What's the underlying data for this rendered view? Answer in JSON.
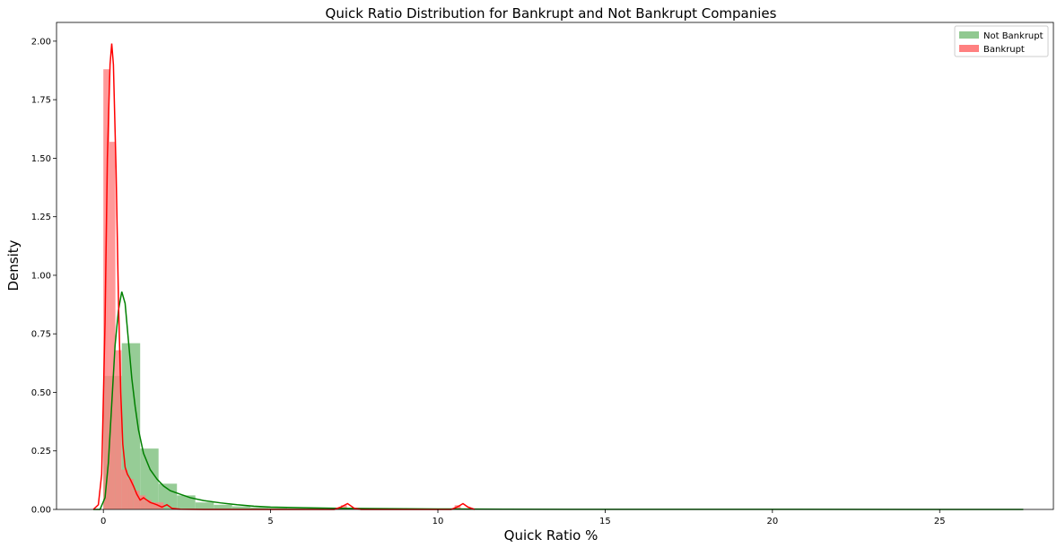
{
  "chart_data": {
    "type": "histogram",
    "title": "Quick Ratio Distribution for Bankrupt and Not Bankrupt Companies",
    "xlabel": "Quick Ratio %",
    "ylabel": "Density",
    "xlim": [
      -1.4,
      28.4
    ],
    "ylim": [
      0,
      2.08
    ],
    "xticks": [
      0,
      5,
      10,
      15,
      20,
      25
    ],
    "yticks": [
      0.0,
      0.25,
      0.5,
      0.75,
      1.0,
      1.25,
      1.5,
      1.75,
      2.0
    ],
    "xtick_labels": [
      "0",
      "5",
      "10",
      "15",
      "20",
      "25"
    ],
    "ytick_labels": [
      "0.00",
      "0.25",
      "0.50",
      "0.75",
      "1.00",
      "1.25",
      "1.50",
      "1.75",
      "2.00"
    ],
    "grid": false,
    "legend_position": "top-right",
    "series": [
      {
        "name": "Not Bankrupt",
        "color": "#008000",
        "bar_color": "#90c990",
        "bins": [
          [
            0.0,
            0.55,
            0.57
          ],
          [
            0.55,
            1.1,
            0.71
          ],
          [
            1.1,
            1.65,
            0.26
          ],
          [
            1.65,
            2.2,
            0.11
          ],
          [
            2.2,
            2.75,
            0.06
          ],
          [
            2.75,
            3.3,
            0.03
          ],
          [
            3.3,
            3.85,
            0.02
          ],
          [
            3.85,
            4.4,
            0.013
          ],
          [
            4.4,
            4.95,
            0.009
          ],
          [
            4.95,
            5.5,
            0.007
          ],
          [
            5.5,
            6.05,
            0.005
          ],
          [
            6.05,
            6.6,
            0.004
          ],
          [
            6.6,
            7.15,
            0.003
          ],
          [
            7.15,
            7.7,
            0.002
          ],
          [
            7.7,
            8.25,
            0.002
          ],
          [
            8.25,
            8.8,
            0.001
          ]
        ],
        "kde": [
          [
            -0.3,
            0.0
          ],
          [
            -0.1,
            0.0
          ],
          [
            0.05,
            0.05
          ],
          [
            0.15,
            0.2
          ],
          [
            0.25,
            0.45
          ],
          [
            0.35,
            0.7
          ],
          [
            0.45,
            0.85
          ],
          [
            0.55,
            0.93
          ],
          [
            0.65,
            0.88
          ],
          [
            0.75,
            0.72
          ],
          [
            0.85,
            0.56
          ],
          [
            0.95,
            0.44
          ],
          [
            1.05,
            0.34
          ],
          [
            1.2,
            0.24
          ],
          [
            1.4,
            0.17
          ],
          [
            1.6,
            0.13
          ],
          [
            1.8,
            0.1
          ],
          [
            2.0,
            0.08
          ],
          [
            2.3,
            0.065
          ],
          [
            2.6,
            0.05
          ],
          [
            3.0,
            0.038
          ],
          [
            3.5,
            0.028
          ],
          [
            4.0,
            0.02
          ],
          [
            4.5,
            0.014
          ],
          [
            5.0,
            0.01
          ],
          [
            6.0,
            0.007
          ],
          [
            7.0,
            0.005
          ],
          [
            8.0,
            0.004
          ],
          [
            9.0,
            0.003
          ],
          [
            10.0,
            0.002
          ],
          [
            12.0,
            0.001
          ],
          [
            15.0,
            0.0005
          ],
          [
            20.0,
            0.0003
          ],
          [
            25.0,
            0.0002
          ],
          [
            27.5,
            0.0
          ]
        ]
      },
      {
        "name": "Bankrupt",
        "color": "#ff0000",
        "bar_color": "#ff8080",
        "bins": [
          [
            0.0,
            0.18,
            1.88
          ],
          [
            0.18,
            0.36,
            1.57
          ],
          [
            0.36,
            0.54,
            0.68
          ],
          [
            0.54,
            0.72,
            0.17
          ],
          [
            0.72,
            0.9,
            0.13
          ],
          [
            0.9,
            1.08,
            0.08
          ],
          [
            1.08,
            1.26,
            0.06
          ],
          [
            1.26,
            1.44,
            0.04
          ],
          [
            1.44,
            1.62,
            0.03
          ],
          [
            1.62,
            1.8,
            0.03
          ],
          [
            7.1,
            7.28,
            0.018
          ],
          [
            10.5,
            10.68,
            0.018
          ]
        ],
        "kde": [
          [
            -0.3,
            0.0
          ],
          [
            -0.15,
            0.02
          ],
          [
            -0.05,
            0.15
          ],
          [
            0.05,
            0.8
          ],
          [
            0.12,
            1.5
          ],
          [
            0.2,
            1.9
          ],
          [
            0.25,
            1.99
          ],
          [
            0.3,
            1.9
          ],
          [
            0.38,
            1.45
          ],
          [
            0.45,
            0.9
          ],
          [
            0.52,
            0.5
          ],
          [
            0.58,
            0.28
          ],
          [
            0.65,
            0.18
          ],
          [
            0.72,
            0.15
          ],
          [
            0.8,
            0.13
          ],
          [
            0.9,
            0.1
          ],
          [
            1.0,
            0.065
          ],
          [
            1.1,
            0.04
          ],
          [
            1.2,
            0.05
          ],
          [
            1.3,
            0.04
          ],
          [
            1.4,
            0.03
          ],
          [
            1.5,
            0.025
          ],
          [
            1.6,
            0.02
          ],
          [
            1.75,
            0.01
          ],
          [
            1.9,
            0.02
          ],
          [
            2.05,
            0.005
          ],
          [
            2.3,
            0.001
          ],
          [
            3.0,
            0.0
          ],
          [
            4.0,
            0.0
          ],
          [
            6.0,
            0.0
          ],
          [
            6.9,
            0.0
          ],
          [
            7.1,
            0.01
          ],
          [
            7.3,
            0.025
          ],
          [
            7.5,
            0.005
          ],
          [
            7.7,
            0.0
          ],
          [
            9.0,
            0.0
          ],
          [
            10.4,
            0.0
          ],
          [
            10.6,
            0.012
          ],
          [
            10.75,
            0.025
          ],
          [
            10.9,
            0.01
          ],
          [
            11.1,
            0.0
          ]
        ]
      }
    ]
  }
}
